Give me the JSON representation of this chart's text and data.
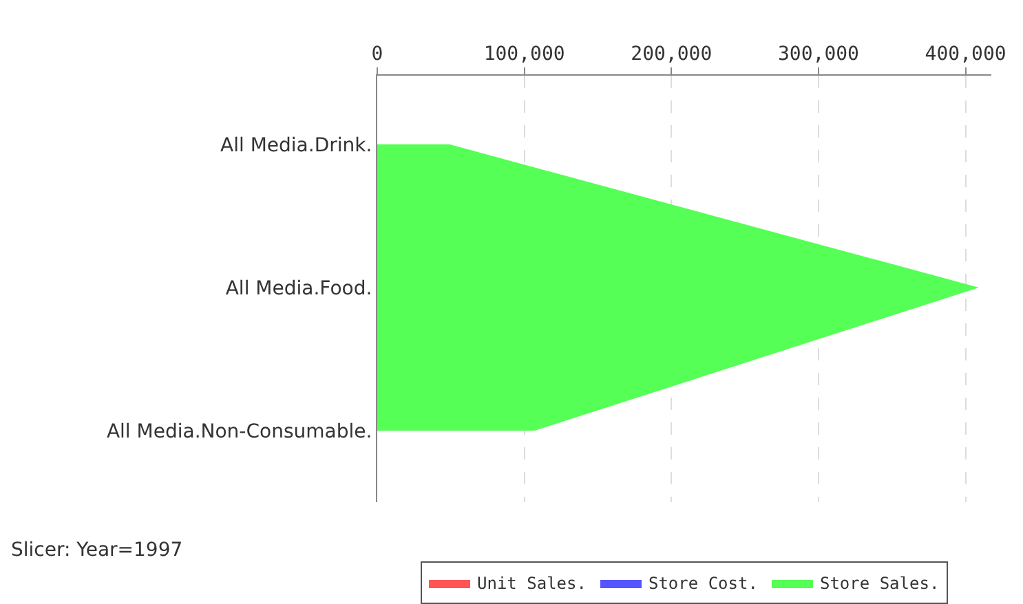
{
  "chart_data": {
    "type": "area",
    "orientation": "horizontal",
    "categories": [
      "All Media.Drink.",
      "All Media.Food.",
      "All Media.Non-Consumable."
    ],
    "series": [
      {
        "name": "Unit Sales.",
        "color": "#ff5555",
        "values": [
          null,
          null,
          null
        ]
      },
      {
        "name": "Store Cost.",
        "color": "#5555ff",
        "values": [
          null,
          null,
          null
        ]
      },
      {
        "name": "Store Sales.",
        "color": "#55ff55",
        "values": [
          49000,
          409000,
          107000
        ]
      }
    ],
    "xlim": [
      0,
      417500
    ],
    "xticks": [
      {
        "value": 0,
        "label": "0"
      },
      {
        "value": 100000,
        "label": "100,000"
      },
      {
        "value": 200000,
        "label": "200,000"
      },
      {
        "value": 300000,
        "label": "300,000"
      },
      {
        "value": 400000,
        "label": "400,000"
      }
    ],
    "grid": "x",
    "legend": "bottom",
    "annotations": [
      "Slicer: Year=1997"
    ]
  }
}
